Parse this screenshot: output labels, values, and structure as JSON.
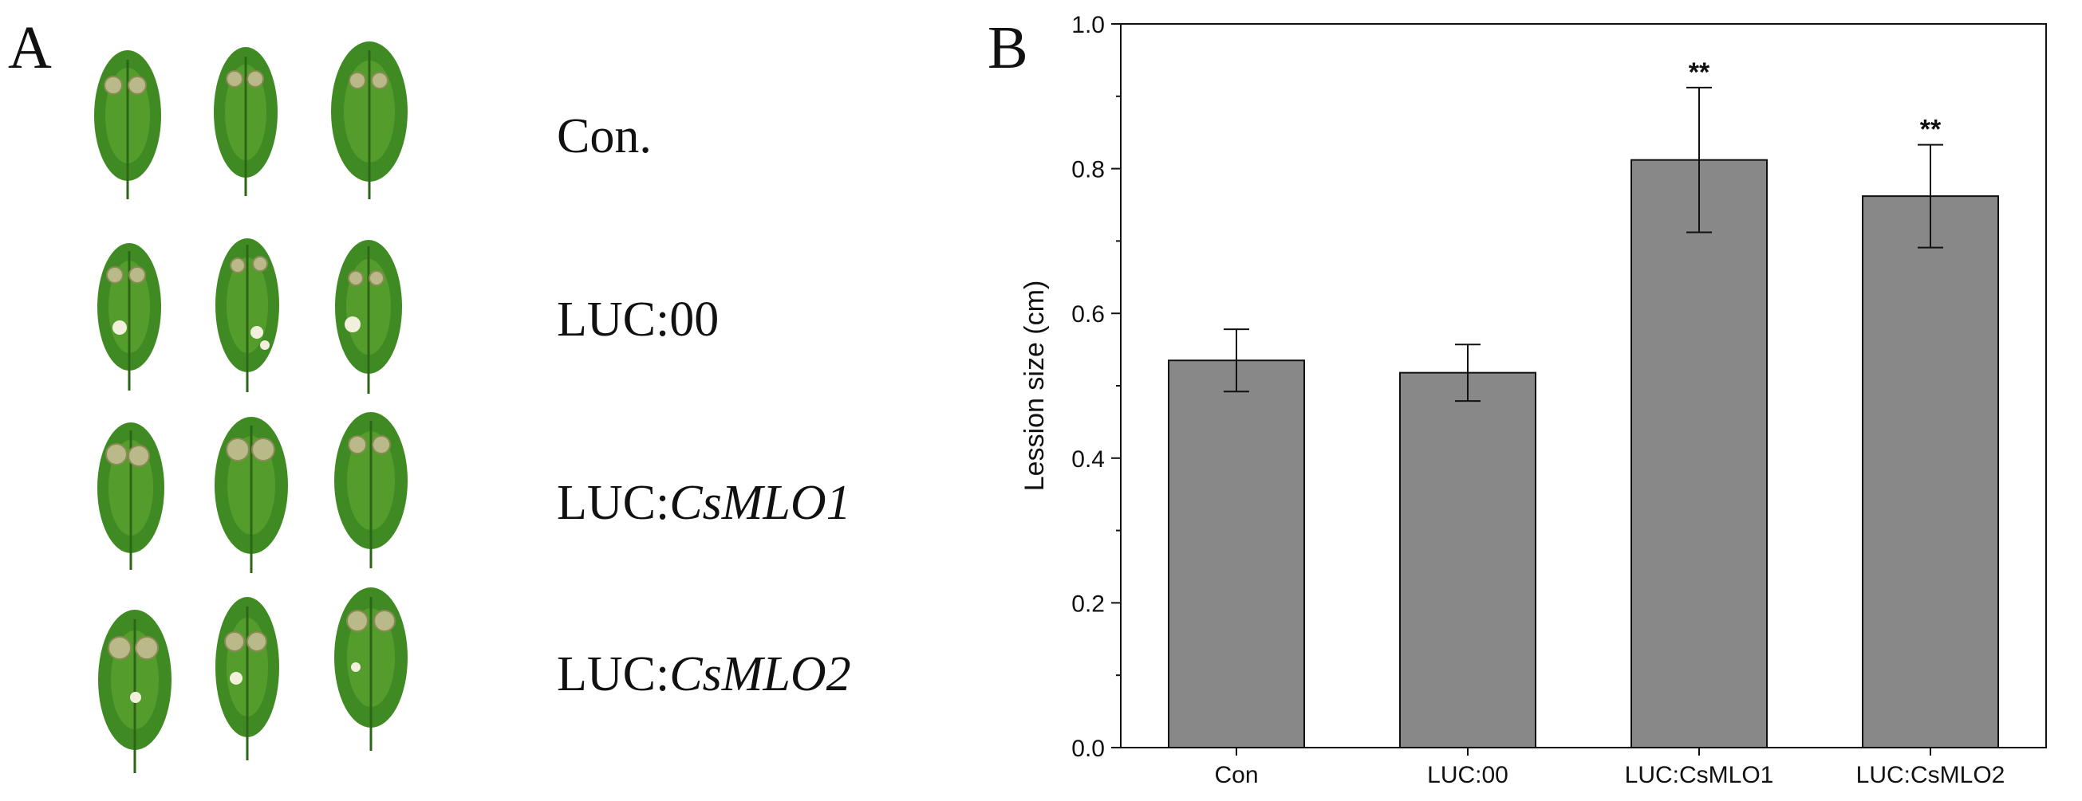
{
  "figure": {
    "panel_a_letter": "A",
    "panel_b_letter": "B"
  },
  "panel_a": {
    "rows": [
      {
        "label_prefix": "Con.",
        "label_italic": ""
      },
      {
        "label_prefix": "LUC:00",
        "label_italic": ""
      },
      {
        "label_prefix": "LUC:",
        "label_italic": "CsMLO1"
      },
      {
        "label_prefix": "LUC:",
        "label_italic": "CsMLO2"
      }
    ],
    "colors": {
      "leaf": "#3f8a22",
      "leaf_light": "#6fb43a",
      "leaf_dark": "#2c6516",
      "lesion": "#b9b98a",
      "spot": "#f2f0dc",
      "stem": "#4e8f2a"
    }
  },
  "chart_data": {
    "type": "bar",
    "categories": [
      "Con",
      "LUC:00",
      "LUC:CsMLO1",
      "LUC:CsMLO2"
    ],
    "values": [
      0.535,
      0.518,
      0.812,
      0.762
    ],
    "errors": [
      0.043,
      0.039,
      0.1,
      0.071
    ],
    "significance": [
      "",
      "",
      "**",
      "**"
    ],
    "ylabel": "Lession size (cm)",
    "xlabel": "",
    "ylim": [
      0,
      1.0
    ],
    "yticks": [
      "0.0",
      "0.2",
      "0.4",
      "0.6",
      "0.8",
      "1.0"
    ],
    "ytick_values": [
      0,
      0.2,
      0.4,
      0.6,
      0.8,
      1.0
    ],
    "colors": {
      "bar": "#888888",
      "axis": "#111111"
    }
  }
}
